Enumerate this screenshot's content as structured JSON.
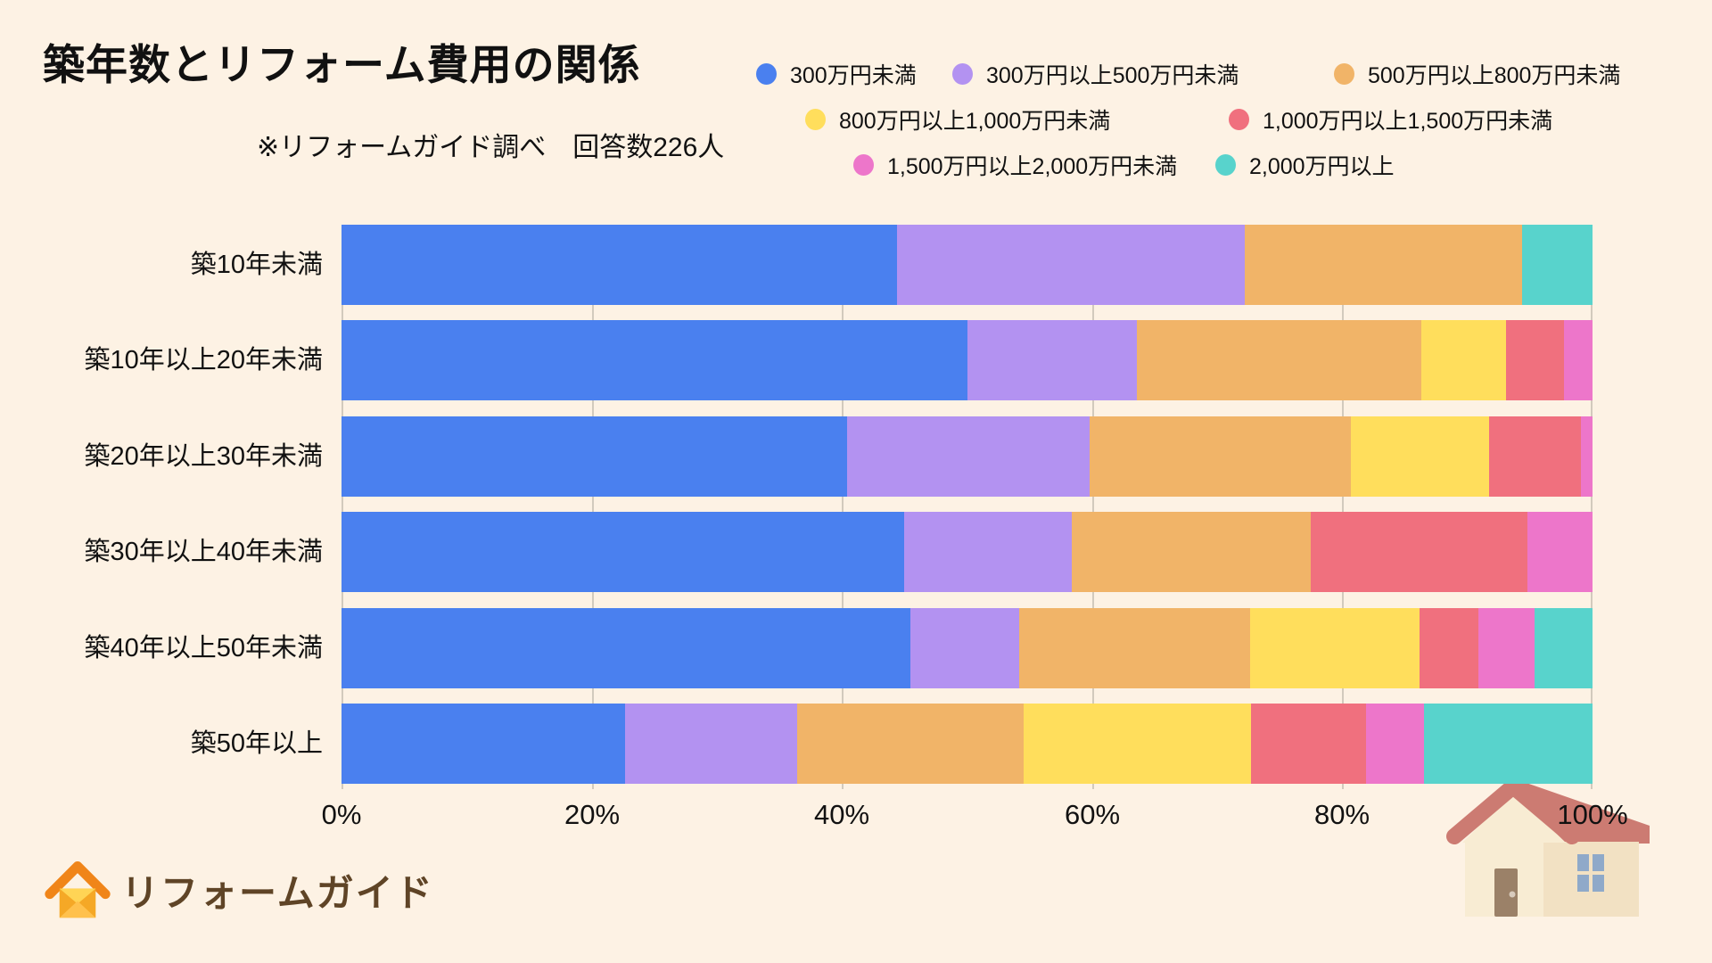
{
  "header": {
    "title": "築年数とリフォーム費用の関係",
    "subtitle": "※リフォームガイド調べ　回答数226人"
  },
  "colors": {
    "background": "#fdf2e4",
    "text": "#111111",
    "gridline": "#d2cabd",
    "logo_orange": "#f08519",
    "logo_yellow": "#f9b233",
    "logo_text_brown": "#5f4426",
    "house_roof": "#cc7b72",
    "house_wall_left": "#f8ecd3",
    "house_wall_right": "#f2e1c3",
    "house_door": "#9b8168",
    "house_window": "#8fa9c9"
  },
  "logo": {
    "text": "リフォームガイド",
    "icon": "house-envelope-icon"
  },
  "chart_data": {
    "type": "bar",
    "subtype": "horizontal-stacked-percentage",
    "title": "築年数とリフォーム費用の関係",
    "note": "※リフォームガイド調べ　回答数226人",
    "respondents": 226,
    "unit": "%",
    "xlim": [
      0,
      100
    ],
    "grid": "vertical",
    "legend_position": "top-right",
    "x_ticks": [
      "0%",
      "20%",
      "40%",
      "60%",
      "80%",
      "100%"
    ],
    "categories": [
      "築10年未満",
      "築10年以上20年未満",
      "築20年以上30年未満",
      "築30年以上40年未満",
      "築40年以上50年未満",
      "築50年以上"
    ],
    "series": [
      {
        "name": "300万円未満",
        "color": "#4a80ef",
        "values": [
          44.4,
          50.0,
          40.4,
          45.0,
          45.5,
          22.7
        ]
      },
      {
        "name": "300万円以上500万円未満",
        "color": "#b392f1",
        "values": [
          27.8,
          13.6,
          19.4,
          13.4,
          8.7,
          13.7
        ]
      },
      {
        "name": "500万円以上800万円未満",
        "color": "#f1b468",
        "values": [
          22.2,
          22.7,
          20.9,
          19.1,
          18.4,
          18.1
        ]
      },
      {
        "name": "800万円以上1,000万円未満",
        "color": "#ffde5c",
        "values": [
          0.0,
          6.8,
          11.0,
          0.0,
          13.6,
          18.2
        ]
      },
      {
        "name": "1,000万円以上1,500万円未満",
        "color": "#f0707e",
        "values": [
          0.0,
          4.6,
          7.4,
          17.3,
          4.7,
          9.2
        ]
      },
      {
        "name": "1,500万円以上2,000万円未満",
        "color": "#ed76ca",
        "values": [
          0.0,
          2.3,
          0.9,
          5.2,
          4.5,
          4.6
        ]
      },
      {
        "name": "2,000万円以上",
        "color": "#58d3cc",
        "values": [
          5.6,
          0.0,
          0.0,
          0.0,
          4.6,
          13.5
        ]
      }
    ]
  }
}
